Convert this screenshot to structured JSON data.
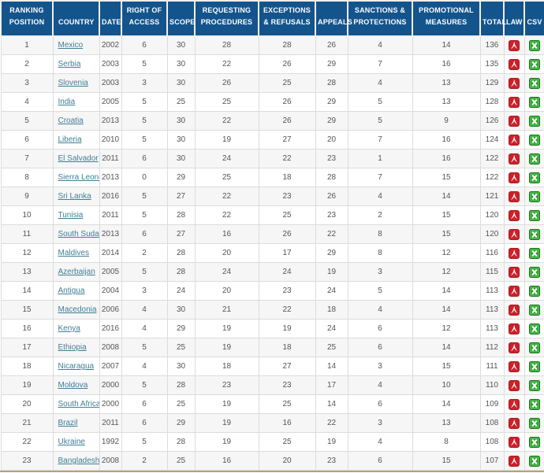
{
  "colors": {
    "header_bg": "#14548C",
    "header_fg": "#FFFFFF",
    "link": "#3F7E95",
    "row_alt": "#F6F6F6",
    "border": "#DCDCDC",
    "pdf_red": "#CE2029",
    "excel_green": "#23A223",
    "bottom_accent": "#B3A474"
  },
  "table": {
    "headers": [
      "RANKING POSITION",
      "COUNTRY",
      "DATE",
      "RIGHT OF ACCESS",
      "SCOPE",
      "REQUESTING PROCEDURES",
      "EXCEPTIONS & REFUSALS",
      "APPEALS",
      "SANCTIONS & PROTECTIONS",
      "PROMOTIONAL MEASURES",
      "TOTAL",
      "LAW",
      "CSV"
    ],
    "icons": {
      "law": "pdf-icon",
      "csv": "excel-icon"
    },
    "rows": [
      {
        "rank": 1,
        "country": "Mexico",
        "date": 2002,
        "right_of_access": 6,
        "scope": 30,
        "requesting_procedures": 28,
        "exceptions_refusals": 28,
        "appeals": 26,
        "sanctions_protections": 4,
        "promotional_measures": 14,
        "total": 136
      },
      {
        "rank": 2,
        "country": "Serbia",
        "date": 2003,
        "right_of_access": 5,
        "scope": 30,
        "requesting_procedures": 22,
        "exceptions_refusals": 26,
        "appeals": 29,
        "sanctions_protections": 7,
        "promotional_measures": 16,
        "total": 135
      },
      {
        "rank": 3,
        "country": "Slovenia",
        "date": 2003,
        "right_of_access": 3,
        "scope": 30,
        "requesting_procedures": 26,
        "exceptions_refusals": 25,
        "appeals": 28,
        "sanctions_protections": 4,
        "promotional_measures": 13,
        "total": 129
      },
      {
        "rank": 4,
        "country": "India",
        "date": 2005,
        "right_of_access": 5,
        "scope": 25,
        "requesting_procedures": 25,
        "exceptions_refusals": 26,
        "appeals": 29,
        "sanctions_protections": 5,
        "promotional_measures": 13,
        "total": 128
      },
      {
        "rank": 5,
        "country": "Croatia",
        "date": 2013,
        "right_of_access": 5,
        "scope": 30,
        "requesting_procedures": 22,
        "exceptions_refusals": 26,
        "appeals": 29,
        "sanctions_protections": 5,
        "promotional_measures": 9,
        "total": 126
      },
      {
        "rank": 6,
        "country": "Liberia",
        "date": 2010,
        "right_of_access": 5,
        "scope": 30,
        "requesting_procedures": 19,
        "exceptions_refusals": 27,
        "appeals": 20,
        "sanctions_protections": 7,
        "promotional_measures": 16,
        "total": 124
      },
      {
        "rank": 7,
        "country": "El Salvador",
        "date": 2011,
        "right_of_access": 6,
        "scope": 30,
        "requesting_procedures": 24,
        "exceptions_refusals": 22,
        "appeals": 23,
        "sanctions_protections": 1,
        "promotional_measures": 16,
        "total": 122
      },
      {
        "rank": 8,
        "country": "Sierra Leone",
        "date": 2013,
        "right_of_access": 0,
        "scope": 29,
        "requesting_procedures": 25,
        "exceptions_refusals": 18,
        "appeals": 28,
        "sanctions_protections": 7,
        "promotional_measures": 15,
        "total": 122
      },
      {
        "rank": 9,
        "country": "Sri Lanka",
        "date": 2016,
        "right_of_access": 5,
        "scope": 27,
        "requesting_procedures": 22,
        "exceptions_refusals": 23,
        "appeals": 26,
        "sanctions_protections": 4,
        "promotional_measures": 14,
        "total": 121
      },
      {
        "rank": 10,
        "country": "Tunisia",
        "date": 2011,
        "right_of_access": 5,
        "scope": 28,
        "requesting_procedures": 22,
        "exceptions_refusals": 25,
        "appeals": 23,
        "sanctions_protections": 2,
        "promotional_measures": 15,
        "total": 120
      },
      {
        "rank": 11,
        "country": "South Sudan",
        "date": 2013,
        "right_of_access": 6,
        "scope": 27,
        "requesting_procedures": 16,
        "exceptions_refusals": 26,
        "appeals": 22,
        "sanctions_protections": 8,
        "promotional_measures": 15,
        "total": 120
      },
      {
        "rank": 12,
        "country": "Maldives",
        "date": 2014,
        "right_of_access": 2,
        "scope": 28,
        "requesting_procedures": 20,
        "exceptions_refusals": 17,
        "appeals": 29,
        "sanctions_protections": 8,
        "promotional_measures": 12,
        "total": 116
      },
      {
        "rank": 13,
        "country": "Azerbaijan",
        "date": 2005,
        "right_of_access": 5,
        "scope": 28,
        "requesting_procedures": 24,
        "exceptions_refusals": 24,
        "appeals": 19,
        "sanctions_protections": 3,
        "promotional_measures": 12,
        "total": 115
      },
      {
        "rank": 14,
        "country": "Antigua",
        "date": 2004,
        "right_of_access": 3,
        "scope": 24,
        "requesting_procedures": 20,
        "exceptions_refusals": 23,
        "appeals": 24,
        "sanctions_protections": 5,
        "promotional_measures": 14,
        "total": 113
      },
      {
        "rank": 15,
        "country": "Macedonia",
        "date": 2006,
        "right_of_access": 4,
        "scope": 30,
        "requesting_procedures": 21,
        "exceptions_refusals": 22,
        "appeals": 18,
        "sanctions_protections": 4,
        "promotional_measures": 14,
        "total": 113
      },
      {
        "rank": 16,
        "country": "Kenya",
        "date": 2016,
        "right_of_access": 4,
        "scope": 29,
        "requesting_procedures": 19,
        "exceptions_refusals": 19,
        "appeals": 24,
        "sanctions_protections": 6,
        "promotional_measures": 12,
        "total": 113
      },
      {
        "rank": 17,
        "country": "Ethiopia",
        "date": 2008,
        "right_of_access": 5,
        "scope": 25,
        "requesting_procedures": 19,
        "exceptions_refusals": 18,
        "appeals": 25,
        "sanctions_protections": 6,
        "promotional_measures": 14,
        "total": 112
      },
      {
        "rank": 18,
        "country": "Nicaragua",
        "date": 2007,
        "right_of_access": 4,
        "scope": 30,
        "requesting_procedures": 18,
        "exceptions_refusals": 27,
        "appeals": 14,
        "sanctions_protections": 3,
        "promotional_measures": 15,
        "total": 111
      },
      {
        "rank": 19,
        "country": "Moldova",
        "date": 2000,
        "right_of_access": 5,
        "scope": 28,
        "requesting_procedures": 23,
        "exceptions_refusals": 23,
        "appeals": 17,
        "sanctions_protections": 4,
        "promotional_measures": 10,
        "total": 110
      },
      {
        "rank": 20,
        "country": "South Africa",
        "date": 2000,
        "right_of_access": 6,
        "scope": 25,
        "requesting_procedures": 19,
        "exceptions_refusals": 25,
        "appeals": 14,
        "sanctions_protections": 6,
        "promotional_measures": 14,
        "total": 109
      },
      {
        "rank": 21,
        "country": "Brazil",
        "date": 2011,
        "right_of_access": 6,
        "scope": 29,
        "requesting_procedures": 19,
        "exceptions_refusals": 16,
        "appeals": 22,
        "sanctions_protections": 3,
        "promotional_measures": 13,
        "total": 108
      },
      {
        "rank": 22,
        "country": "Ukraine",
        "date": 1992,
        "right_of_access": 5,
        "scope": 28,
        "requesting_procedures": 19,
        "exceptions_refusals": 25,
        "appeals": 19,
        "sanctions_protections": 4,
        "promotional_measures": 8,
        "total": 108
      },
      {
        "rank": 23,
        "country": "Bangladesh",
        "date": 2008,
        "right_of_access": 2,
        "scope": 25,
        "requesting_procedures": 16,
        "exceptions_refusals": 20,
        "appeals": 23,
        "sanctions_protections": 6,
        "promotional_measures": 15,
        "total": 107
      }
    ]
  }
}
